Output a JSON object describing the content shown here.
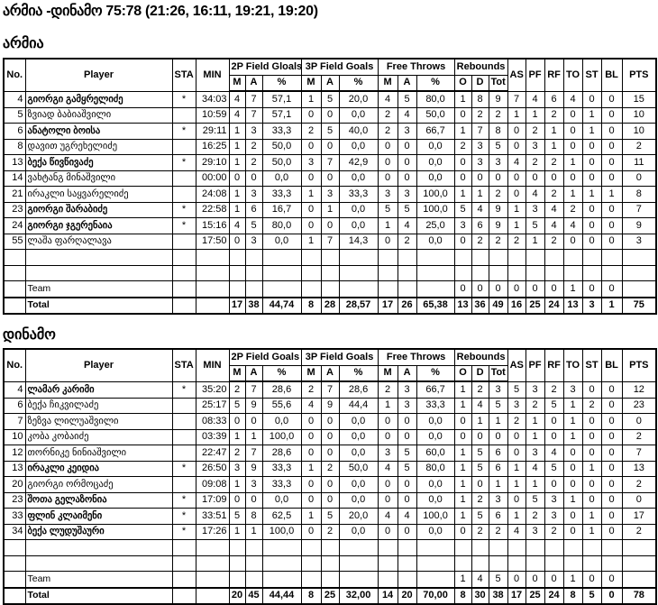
{
  "title": "არმია -დინამო 75:78 (21:26, 16:11, 19:21, 19:20)",
  "headers": {
    "no": "No.",
    "player": "Player",
    "sta": "STA",
    "min": "MIN",
    "fg2": "2P Field Gloals",
    "fg3": "3P Field Goals",
    "ft": "Free Throws",
    "reb": "Rebounds",
    "m": "M",
    "a": "A",
    "pct": "%",
    "o": "O",
    "d": "D",
    "tot": "Tot",
    "as": "AS",
    "pf": "PF",
    "rf": "RF",
    "to": "TO",
    "st": "ST",
    "bl": "BL",
    "pts": "PTS"
  },
  "headers2": {
    "fg2": "2P Field Goals"
  },
  "teams": [
    {
      "name": "არმია",
      "players": [
        [
          "4",
          "გიორგი გამყრელიძე",
          "*",
          "34:03",
          "4",
          "7",
          "57,1",
          "1",
          "5",
          "20,0",
          "4",
          "5",
          "80,0",
          "1",
          "8",
          "9",
          "7",
          "4",
          "6",
          "4",
          "0",
          "0",
          "15"
        ],
        [
          "5",
          "ზვიად ბაბიაშვილი",
          "",
          "10:59",
          "4",
          "7",
          "57,1",
          "0",
          "0",
          "0,0",
          "2",
          "4",
          "50,0",
          "0",
          "2",
          "2",
          "1",
          "1",
          "2",
          "0",
          "1",
          "0",
          "10"
        ],
        [
          "6",
          "ანატოლი ბოისა",
          "*",
          "29:11",
          "1",
          "3",
          "33,3",
          "2",
          "5",
          "40,0",
          "2",
          "3",
          "66,7",
          "1",
          "7",
          "8",
          "0",
          "2",
          "1",
          "0",
          "1",
          "0",
          "10"
        ],
        [
          "8",
          "დავით უგრეხელიძე",
          "",
          "16:25",
          "1",
          "2",
          "50,0",
          "0",
          "0",
          "0,0",
          "0",
          "0",
          "0,0",
          "2",
          "3",
          "5",
          "0",
          "3",
          "1",
          "0",
          "0",
          "0",
          "2"
        ],
        [
          "13",
          "ბექა წივწივაძე",
          "*",
          "29:10",
          "1",
          "2",
          "50,0",
          "3",
          "7",
          "42,9",
          "0",
          "0",
          "0,0",
          "0",
          "3",
          "3",
          "4",
          "2",
          "2",
          "1",
          "0",
          "0",
          "11"
        ],
        [
          "14",
          "ვახტანგ მინაშვილი",
          "",
          "00:00",
          "0",
          "0",
          "0,0",
          "0",
          "0",
          "0,0",
          "0",
          "0",
          "0,0",
          "0",
          "0",
          "0",
          "0",
          "0",
          "0",
          "0",
          "0",
          "0",
          "0"
        ],
        [
          "21",
          "ირაკლი საყვარელიძე",
          "",
          "24:08",
          "1",
          "3",
          "33,3",
          "1",
          "3",
          "33,3",
          "3",
          "3",
          "100,0",
          "1",
          "1",
          "2",
          "0",
          "4",
          "2",
          "1",
          "1",
          "1",
          "8"
        ],
        [
          "23",
          "გიორგი შარაბიძე",
          "*",
          "22:58",
          "1",
          "6",
          "16,7",
          "0",
          "1",
          "0,0",
          "5",
          "5",
          "100,0",
          "5",
          "4",
          "9",
          "1",
          "3",
          "4",
          "2",
          "0",
          "0",
          "7"
        ],
        [
          "24",
          "გიორგი ჯგერენაია",
          "*",
          "15:16",
          "4",
          "5",
          "80,0",
          "0",
          "0",
          "0,0",
          "1",
          "4",
          "25,0",
          "3",
          "6",
          "9",
          "1",
          "5",
          "4",
          "4",
          "0",
          "0",
          "9"
        ],
        [
          "55",
          "ლაშა ფარღალავა",
          "",
          "17:50",
          "0",
          "3",
          "0,0",
          "1",
          "7",
          "14,3",
          "0",
          "2",
          "0,0",
          "0",
          "2",
          "2",
          "2",
          "1",
          "2",
          "0",
          "0",
          "0",
          "3"
        ]
      ],
      "team_row": [
        "Team",
        "0",
        "0",
        "0",
        "0",
        "0",
        "0",
        "1",
        "0",
        "0"
      ],
      "total_row": [
        "Total",
        "17",
        "38",
        "44,74",
        "8",
        "28",
        "28,57",
        "17",
        "26",
        "65,38",
        "13",
        "36",
        "49",
        "16",
        "25",
        "24",
        "13",
        "3",
        "1",
        "75"
      ]
    },
    {
      "name": "დინამო",
      "players": [
        [
          "4",
          "ლამარ კარიმი",
          "*",
          "35:20",
          "2",
          "7",
          "28,6",
          "2",
          "7",
          "28,6",
          "2",
          "3",
          "66,7",
          "1",
          "2",
          "3",
          "5",
          "3",
          "2",
          "3",
          "0",
          "0",
          "12"
        ],
        [
          "6",
          "ბექა ჩიკვილაძე",
          "",
          "25:17",
          "5",
          "9",
          "55,6",
          "4",
          "9",
          "44,4",
          "1",
          "3",
          "33,3",
          "1",
          "4",
          "5",
          "3",
          "2",
          "5",
          "1",
          "2",
          "0",
          "23"
        ],
        [
          "7",
          "ზეზვა ლილუაშვილი",
          "",
          "08:33",
          "0",
          "0",
          "0,0",
          "0",
          "0",
          "0,0",
          "0",
          "0",
          "0,0",
          "0",
          "1",
          "1",
          "2",
          "1",
          "0",
          "1",
          "0",
          "0",
          "0"
        ],
        [
          "10",
          "კობა კობაიძე",
          "",
          "03:39",
          "1",
          "1",
          "100,0",
          "0",
          "0",
          "0,0",
          "0",
          "0",
          "0,0",
          "0",
          "0",
          "0",
          "0",
          "1",
          "0",
          "1",
          "0",
          "0",
          "2"
        ],
        [
          "12",
          "თორნიკე ნინიაშვილი",
          "",
          "22:47",
          "2",
          "7",
          "28,6",
          "0",
          "0",
          "0,0",
          "3",
          "5",
          "60,0",
          "1",
          "5",
          "6",
          "0",
          "3",
          "4",
          "0",
          "0",
          "0",
          "7"
        ],
        [
          "13",
          "ირაკლი კეიდია",
          "*",
          "26:50",
          "3",
          "9",
          "33,3",
          "1",
          "2",
          "50,0",
          "4",
          "5",
          "80,0",
          "1",
          "5",
          "6",
          "1",
          "4",
          "5",
          "0",
          "1",
          "0",
          "13"
        ],
        [
          "20",
          "გიორგი ორმოცაძე",
          "",
          "09:08",
          "1",
          "3",
          "33,3",
          "0",
          "0",
          "0,0",
          "0",
          "0",
          "0,0",
          "1",
          "0",
          "1",
          "1",
          "1",
          "0",
          "0",
          "0",
          "0",
          "2"
        ],
        [
          "23",
          "შოთა გელაზონია",
          "*",
          "17:09",
          "0",
          "0",
          "0,0",
          "0",
          "0",
          "0,0",
          "0",
          "0",
          "0,0",
          "1",
          "2",
          "3",
          "0",
          "5",
          "3",
          "1",
          "0",
          "0",
          "0"
        ],
        [
          "33",
          "ფლინ კლაიმენი",
          "*",
          "33:51",
          "5",
          "8",
          "62,5",
          "1",
          "5",
          "20,0",
          "4",
          "4",
          "100,0",
          "1",
          "5",
          "6",
          "1",
          "2",
          "3",
          "0",
          "1",
          "0",
          "17"
        ],
        [
          "34",
          "ბექა ლუდუშაური",
          "*",
          "17:26",
          "1",
          "1",
          "100,0",
          "0",
          "2",
          "0,0",
          "0",
          "0",
          "0,0",
          "0",
          "2",
          "2",
          "4",
          "3",
          "2",
          "0",
          "1",
          "0",
          "2"
        ]
      ],
      "team_row": [
        "Team",
        "1",
        "4",
        "5",
        "0",
        "0",
        "0",
        "1",
        "0",
        "0"
      ],
      "total_row": [
        "Total",
        "20",
        "45",
        "44,44",
        "8",
        "25",
        "32,00",
        "14",
        "20",
        "70,00",
        "8",
        "30",
        "38",
        "17",
        "25",
        "24",
        "8",
        "5",
        "0",
        "78"
      ]
    }
  ]
}
